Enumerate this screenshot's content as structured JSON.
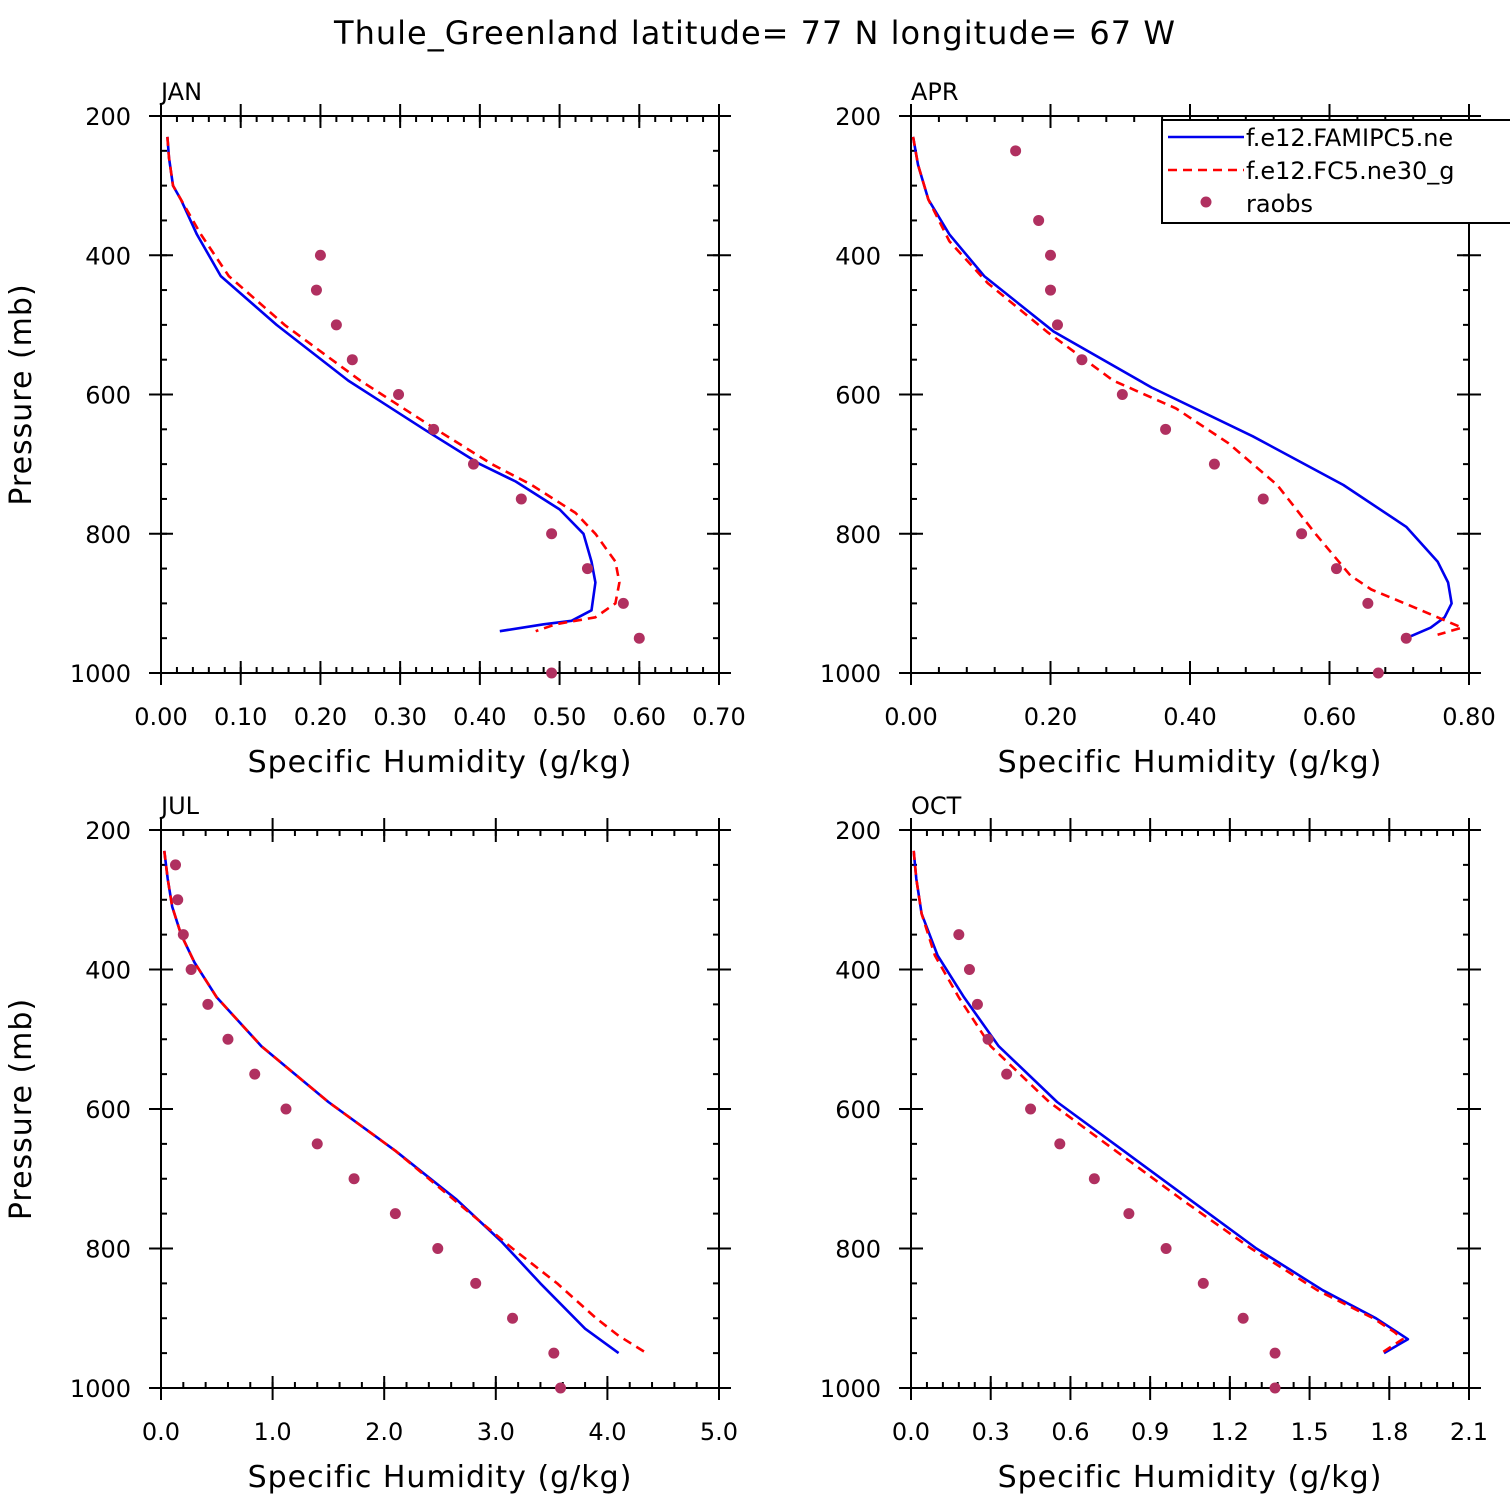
{
  "title": "Thule_Greenland  latitude= 77 N longitude= 67 W",
  "colors": {
    "model1": "#0000ee",
    "model2": "#ff0000",
    "obs": "#b03060",
    "axis": "#000000"
  },
  "legend": {
    "entries": [
      {
        "label": "f.e12.FAMIPC5.ne",
        "style": "solid",
        "color": "#0000ee"
      },
      {
        "label": "f.e12.FC5.ne30_g",
        "style": "dashed",
        "color": "#ff0000"
      },
      {
        "label": "raobs",
        "style": "marker",
        "color": "#b03060"
      }
    ]
  },
  "chart_data": [
    {
      "type": "line",
      "panel": "JAN",
      "xlabel": "Specific Humidity (g/kg)",
      "ylabel": "Pressure (mb)",
      "xlim": [
        0,
        0.7
      ],
      "ylim": [
        1000,
        200
      ],
      "xticks": [
        "0.00",
        "0.10",
        "0.20",
        "0.30",
        "0.40",
        "0.50",
        "0.60",
        "0.70"
      ],
      "xtick_values": [
        0,
        0.1,
        0.2,
        0.3,
        0.4,
        0.5,
        0.6,
        0.7
      ],
      "yticks": [
        "200",
        "400",
        "600",
        "800",
        "1000"
      ],
      "ytick_values": [
        200,
        400,
        600,
        800,
        1000
      ],
      "series": [
        {
          "name": "f.e12.FAMIPC5.ne",
          "style": "solid",
          "x": [
            0.008,
            0.01,
            0.015,
            0.025,
            0.045,
            0.075,
            0.145,
            0.235,
            0.33,
            0.4,
            0.445,
            0.5,
            0.53,
            0.54,
            0.545,
            0.54,
            0.515,
            0.48,
            0.425
          ],
          "y": [
            230,
            260,
            300,
            320,
            370,
            430,
            500,
            580,
            650,
            700,
            725,
            765,
            800,
            840,
            870,
            910,
            925,
            930,
            940
          ]
        },
        {
          "name": "f.e12.FC5.ne30_g",
          "style": "dashed",
          "x": [
            0.008,
            0.01,
            0.015,
            0.03,
            0.05,
            0.085,
            0.155,
            0.25,
            0.345,
            0.415,
            0.465,
            0.52,
            0.545,
            0.57,
            0.575,
            0.57,
            0.545,
            0.495,
            0.47
          ],
          "y": [
            230,
            260,
            300,
            330,
            370,
            430,
            500,
            580,
            650,
            700,
            730,
            770,
            800,
            840,
            870,
            900,
            920,
            930,
            940
          ]
        },
        {
          "name": "raobs",
          "style": "marker",
          "x": [
            0.2,
            0.195,
            0.22,
            0.24,
            0.298,
            0.342,
            0.392,
            0.452,
            0.49,
            0.535,
            0.58,
            0.6,
            0.49
          ],
          "y": [
            400,
            450,
            500,
            550,
            600,
            650,
            700,
            750,
            800,
            850,
            900,
            950,
            1000
          ]
        }
      ]
    },
    {
      "type": "line",
      "panel": "APR",
      "xlabel": "Specific Humidity (g/kg)",
      "ylabel": "",
      "xlim": [
        0,
        0.8
      ],
      "ylim": [
        1000,
        200
      ],
      "xticks": [
        "0.00",
        "0.20",
        "0.40",
        "0.60",
        "0.80"
      ],
      "xtick_values": [
        0,
        0.2,
        0.4,
        0.6,
        0.8
      ],
      "yticks": [
        "200",
        "400",
        "600",
        "800",
        "1000"
      ],
      "ytick_values": [
        200,
        400,
        600,
        800,
        1000
      ],
      "series": [
        {
          "name": "f.e12.FAMIPC5.ne",
          "style": "solid",
          "x": [
            0.003,
            0.01,
            0.025,
            0.055,
            0.105,
            0.205,
            0.345,
            0.49,
            0.62,
            0.71,
            0.755,
            0.77,
            0.775,
            0.765,
            0.745,
            0.71
          ],
          "y": [
            230,
            270,
            320,
            370,
            430,
            510,
            590,
            660,
            730,
            790,
            840,
            870,
            900,
            920,
            935,
            950
          ]
        },
        {
          "name": "f.e12.FC5.ne30_g",
          "style": "dashed",
          "x": [
            0.003,
            0.01,
            0.025,
            0.055,
            0.11,
            0.195,
            0.29,
            0.38,
            0.455,
            0.525,
            0.58,
            0.63,
            0.66,
            0.72,
            0.79,
            0.755
          ],
          "y": [
            230,
            270,
            320,
            380,
            440,
            510,
            580,
            620,
            670,
            730,
            800,
            860,
            880,
            905,
            935,
            945
          ]
        },
        {
          "name": "raobs",
          "style": "marker",
          "x": [
            0.15,
            0.183,
            0.2,
            0.2,
            0.21,
            0.245,
            0.303,
            0.365,
            0.435,
            0.505,
            0.56,
            0.61,
            0.655,
            0.71,
            0.67
          ],
          "y": [
            250,
            350,
            400,
            450,
            500,
            550,
            600,
            650,
            700,
            750,
            800,
            850,
            900,
            950,
            1000
          ]
        }
      ]
    },
    {
      "type": "line",
      "panel": "JUL",
      "xlabel": "Specific Humidity (g/kg)",
      "ylabel": "Pressure (mb)",
      "xlim": [
        0,
        5
      ],
      "ylim": [
        1000,
        200
      ],
      "xticks": [
        "0.0",
        "1.0",
        "2.0",
        "3.0",
        "4.0",
        "5.0"
      ],
      "xtick_values": [
        0,
        1,
        2,
        3,
        4,
        5
      ],
      "yticks": [
        "200",
        "400",
        "600",
        "800",
        "1000"
      ],
      "ytick_values": [
        200,
        400,
        600,
        800,
        1000
      ],
      "series": [
        {
          "name": "f.e12.FAMIPC5.ne",
          "style": "solid",
          "x": [
            0.03,
            0.06,
            0.1,
            0.18,
            0.3,
            0.5,
            0.9,
            1.5,
            2.1,
            2.65,
            3.05,
            3.4,
            3.8,
            4.1
          ],
          "y": [
            230,
            270,
            310,
            350,
            390,
            440,
            510,
            590,
            660,
            730,
            790,
            850,
            915,
            950
          ]
        },
        {
          "name": "f.e12.FC5.ne30_g",
          "style": "dashed",
          "x": [
            0.03,
            0.06,
            0.1,
            0.18,
            0.3,
            0.5,
            0.9,
            1.5,
            2.1,
            2.7,
            3.15,
            3.55,
            3.9,
            4.1,
            4.35
          ],
          "y": [
            230,
            270,
            310,
            350,
            390,
            440,
            510,
            590,
            660,
            740,
            800,
            850,
            900,
            925,
            950
          ]
        },
        {
          "name": "raobs",
          "style": "marker",
          "x": [
            0.13,
            0.15,
            0.2,
            0.27,
            0.42,
            0.6,
            0.84,
            1.12,
            1.4,
            1.73,
            2.1,
            2.48,
            2.82,
            3.15,
            3.52,
            3.58
          ],
          "y": [
            250,
            300,
            350,
            400,
            450,
            500,
            550,
            600,
            650,
            700,
            750,
            800,
            850,
            900,
            950,
            1000
          ]
        }
      ]
    },
    {
      "type": "line",
      "panel": "OCT",
      "xlabel": "Specific Humidity (g/kg)",
      "ylabel": "",
      "xlim": [
        0,
        2.1
      ],
      "ylim": [
        1000,
        200
      ],
      "xticks": [
        "0.0",
        "0.3",
        "0.6",
        "0.9",
        "1.2",
        "1.5",
        "1.8",
        "2.1"
      ],
      "xtick_values": [
        0,
        0.3,
        0.6,
        0.9,
        1.2,
        1.5,
        1.8,
        2.1
      ],
      "yticks": [
        "200",
        "400",
        "600",
        "800",
        "1000"
      ],
      "ytick_values": [
        200,
        400,
        600,
        800,
        1000
      ],
      "series": [
        {
          "name": "f.e12.FAMIPC5.ne",
          "style": "solid",
          "x": [
            0.01,
            0.02,
            0.04,
            0.1,
            0.2,
            0.33,
            0.55,
            0.8,
            1.05,
            1.3,
            1.55,
            1.75,
            1.83,
            1.87,
            1.78
          ],
          "y": [
            230,
            270,
            320,
            380,
            440,
            510,
            590,
            660,
            730,
            800,
            860,
            900,
            920,
            930,
            950
          ]
        },
        {
          "name": "f.e12.FC5.ne30_g",
          "style": "dashed",
          "x": [
            0.01,
            0.02,
            0.04,
            0.09,
            0.18,
            0.3,
            0.52,
            0.77,
            1.02,
            1.28,
            1.53,
            1.74,
            1.82,
            1.85,
            1.77
          ],
          "y": [
            230,
            270,
            320,
            380,
            440,
            510,
            590,
            660,
            730,
            800,
            860,
            900,
            920,
            930,
            950
          ]
        },
        {
          "name": "raobs",
          "style": "marker",
          "x": [
            0.18,
            0.22,
            0.25,
            0.29,
            0.36,
            0.45,
            0.56,
            0.69,
            0.82,
            0.96,
            1.1,
            1.25,
            1.37,
            1.37
          ],
          "y": [
            350,
            400,
            450,
            500,
            550,
            600,
            650,
            700,
            750,
            800,
            850,
            900,
            950,
            1000
          ]
        }
      ]
    }
  ]
}
